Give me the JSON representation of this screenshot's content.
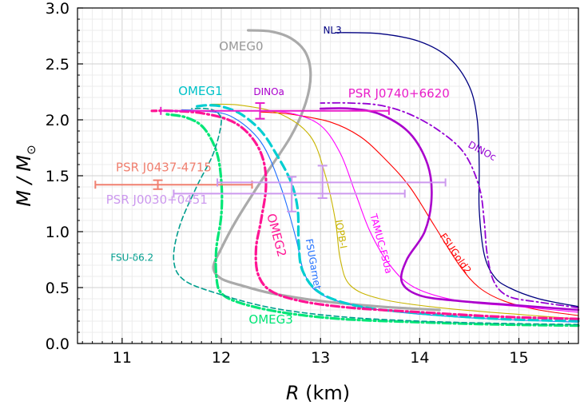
{
  "chart_data": {
    "type": "line",
    "title": "",
    "xlabel": {
      "symbol": "R",
      "unit": " (km)"
    },
    "ylabel": {
      "text": "M / M",
      "sub": "⊙"
    },
    "xlim": [
      10.55,
      15.6
    ],
    "ylim": [
      0.0,
      3.0
    ],
    "xticks": [
      11,
      12,
      13,
      14,
      15
    ],
    "yticks": [
      0.0,
      0.5,
      1.0,
      1.5,
      2.0,
      2.5,
      3.0
    ],
    "grid": true,
    "series": [
      {
        "name": "NL3",
        "color": "#000080",
        "dash": "",
        "width": 1.3,
        "points": [
          [
            15.6,
            0.33
          ],
          [
            15.2,
            0.4
          ],
          [
            14.9,
            0.5
          ],
          [
            14.75,
            0.6
          ],
          [
            14.65,
            0.8
          ],
          [
            14.6,
            1.2
          ],
          [
            14.6,
            1.6
          ],
          [
            14.58,
            2.0
          ],
          [
            14.5,
            2.3
          ],
          [
            14.3,
            2.55
          ],
          [
            14.0,
            2.7
          ],
          [
            13.6,
            2.77
          ],
          [
            13.15,
            2.78
          ]
        ]
      },
      {
        "name": "OMEG0",
        "color": "#aaaaaa",
        "dash": "",
        "width": 3.2,
        "points": [
          [
            14.2,
            0.3
          ],
          [
            13.6,
            0.33
          ],
          [
            13.0,
            0.38
          ],
          [
            12.5,
            0.45
          ],
          [
            12.2,
            0.52
          ],
          [
            12.0,
            0.58
          ],
          [
            11.92,
            0.68
          ],
          [
            12.0,
            0.85
          ],
          [
            12.15,
            1.1
          ],
          [
            12.4,
            1.45
          ],
          [
            12.7,
            1.85
          ],
          [
            12.85,
            2.15
          ],
          [
            12.9,
            2.4
          ],
          [
            12.85,
            2.6
          ],
          [
            12.7,
            2.73
          ],
          [
            12.5,
            2.79
          ],
          [
            12.27,
            2.8
          ]
        ]
      },
      {
        "name": "FSUGold2",
        "color": "#ff0000",
        "dash": "",
        "width": 1.1,
        "points": [
          [
            15.6,
            0.25
          ],
          [
            15.2,
            0.3
          ],
          [
            14.85,
            0.38
          ],
          [
            14.6,
            0.5
          ],
          [
            14.4,
            0.7
          ],
          [
            14.15,
            1.05
          ],
          [
            13.9,
            1.4
          ],
          [
            13.65,
            1.65
          ],
          [
            13.4,
            1.85
          ],
          [
            13.1,
            1.98
          ],
          [
            12.7,
            2.05
          ],
          [
            12.4,
            2.07
          ]
        ]
      },
      {
        "name": "TAMUC-FSUa",
        "color": "#ff00ff",
        "dash": "",
        "width": 1.1,
        "points": [
          [
            15.6,
            0.28
          ],
          [
            15.0,
            0.33
          ],
          [
            14.4,
            0.38
          ],
          [
            13.95,
            0.5
          ],
          [
            13.7,
            0.7
          ],
          [
            13.5,
            1.0
          ],
          [
            13.35,
            1.35
          ],
          [
            13.2,
            1.7
          ],
          [
            13.0,
            1.95
          ],
          [
            12.7,
            2.06
          ],
          [
            12.4,
            2.08
          ]
        ]
      },
      {
        "name": "IOPB-I",
        "color": "#c8b400",
        "dash": "",
        "width": 1.1,
        "points": [
          [
            15.6,
            0.22
          ],
          [
            15.0,
            0.26
          ],
          [
            14.2,
            0.32
          ],
          [
            13.6,
            0.4
          ],
          [
            13.3,
            0.52
          ],
          [
            13.2,
            0.75
          ],
          [
            13.15,
            1.1
          ],
          [
            13.05,
            1.5
          ],
          [
            12.9,
            1.85
          ],
          [
            12.6,
            2.05
          ],
          [
            12.2,
            2.13
          ],
          [
            11.9,
            2.14
          ]
        ]
      },
      {
        "name": "FSUGarnet",
        "color": "#1f6fff",
        "dash": "",
        "width": 1.1,
        "points": [
          [
            15.6,
            0.19
          ],
          [
            14.5,
            0.23
          ],
          [
            13.6,
            0.3
          ],
          [
            13.05,
            0.42
          ],
          [
            12.85,
            0.6
          ],
          [
            12.75,
            0.95
          ],
          [
            12.6,
            1.4
          ],
          [
            12.4,
            1.8
          ],
          [
            12.1,
            2.03
          ],
          [
            11.8,
            2.08
          ],
          [
            11.6,
            2.09
          ]
        ]
      },
      {
        "name": "DINOc",
        "color": "#9400d3",
        "dash": "9,4,2,4",
        "width": 1.8,
        "points": [
          [
            15.6,
            0.32
          ],
          [
            15.2,
            0.37
          ],
          [
            14.9,
            0.42
          ],
          [
            14.75,
            0.55
          ],
          [
            14.68,
            0.8
          ],
          [
            14.65,
            1.1
          ],
          [
            14.6,
            1.4
          ],
          [
            14.45,
            1.7
          ],
          [
            14.2,
            1.9
          ],
          [
            13.9,
            2.05
          ],
          [
            13.6,
            2.13
          ],
          [
            13.3,
            2.15
          ],
          [
            13.0,
            2.15
          ]
        ]
      },
      {
        "name": "DINOa",
        "color": "#aa00cc",
        "dash": "",
        "width": 2.6,
        "points": [
          [
            15.6,
            0.3
          ],
          [
            15.0,
            0.34
          ],
          [
            14.4,
            0.38
          ],
          [
            14.0,
            0.43
          ],
          [
            13.82,
            0.55
          ],
          [
            13.87,
            0.75
          ],
          [
            14.05,
            1.0
          ],
          [
            14.12,
            1.3
          ],
          [
            14.08,
            1.6
          ],
          [
            13.9,
            1.88
          ],
          [
            13.6,
            2.05
          ],
          [
            13.3,
            2.1
          ],
          [
            13.0,
            2.1
          ]
        ]
      },
      {
        "name": "OMEG1",
        "color": "#00ced1",
        "dash": "11,6",
        "width": 3.2,
        "points": [
          [
            15.6,
            0.2
          ],
          [
            14.8,
            0.22
          ],
          [
            14.0,
            0.27
          ],
          [
            13.4,
            0.33
          ],
          [
            13.0,
            0.45
          ],
          [
            12.82,
            0.65
          ],
          [
            12.78,
            0.9
          ],
          [
            12.77,
            1.2
          ],
          [
            12.7,
            1.45
          ],
          [
            12.55,
            1.7
          ],
          [
            12.4,
            1.9
          ],
          [
            12.2,
            2.05
          ],
          [
            12.0,
            2.12
          ],
          [
            11.85,
            2.13
          ],
          [
            11.75,
            2.12
          ]
        ]
      },
      {
        "name": "OMEG2",
        "color": "#ff1493",
        "dash": "10,4,2,4",
        "width": 3.2,
        "points": [
          [
            15.6,
            0.22
          ],
          [
            14.8,
            0.24
          ],
          [
            14.0,
            0.28
          ],
          [
            13.3,
            0.32
          ],
          [
            12.8,
            0.38
          ],
          [
            12.5,
            0.47
          ],
          [
            12.37,
            0.62
          ],
          [
            12.35,
            0.85
          ],
          [
            12.4,
            1.1
          ],
          [
            12.45,
            1.4
          ],
          [
            12.42,
            1.65
          ],
          [
            12.3,
            1.85
          ],
          [
            12.1,
            1.99
          ],
          [
            11.8,
            2.06
          ],
          [
            11.5,
            2.08
          ],
          [
            11.3,
            2.08
          ]
        ]
      },
      {
        "name": "OMEG3",
        "color": "#00e676",
        "dash": "10,4,2,4",
        "width": 3.2,
        "points": [
          [
            15.6,
            0.16
          ],
          [
            14.8,
            0.17
          ],
          [
            14.0,
            0.19
          ],
          [
            13.2,
            0.22
          ],
          [
            12.6,
            0.28
          ],
          [
            12.2,
            0.36
          ],
          [
            12.0,
            0.45
          ],
          [
            11.95,
            0.6
          ],
          [
            11.95,
            0.85
          ],
          [
            12.0,
            1.15
          ],
          [
            12.0,
            1.45
          ],
          [
            11.95,
            1.72
          ],
          [
            11.82,
            1.93
          ],
          [
            11.65,
            2.02
          ],
          [
            11.45,
            2.05
          ]
        ]
      },
      {
        "name": "FSU-δ6.2",
        "color": "#009e8e",
        "dash": "6,4",
        "width": 1.6,
        "points": [
          [
            15.6,
            0.17
          ],
          [
            14.8,
            0.18
          ],
          [
            14.0,
            0.2
          ],
          [
            13.2,
            0.24
          ],
          [
            12.5,
            0.32
          ],
          [
            11.95,
            0.45
          ],
          [
            11.62,
            0.57
          ],
          [
            11.52,
            0.75
          ],
          [
            11.58,
            1.05
          ],
          [
            11.75,
            1.4
          ],
          [
            11.92,
            1.7
          ],
          [
            12.0,
            1.98
          ],
          [
            11.95,
            2.07
          ],
          [
            11.85,
            2.1
          ],
          [
            11.7,
            2.1
          ]
        ]
      }
    ],
    "error_bars": [
      {
        "name": "PSR J0740+6620",
        "color": "#e91ec9",
        "x": 12.39,
        "y": 2.08,
        "xerr": [
          1.0,
          1.3
        ],
        "yerr": [
          0.07,
          0.07
        ]
      },
      {
        "name": "PSR J0437-4715",
        "color": "#f08070",
        "x": 11.36,
        "y": 1.42,
        "xerr": [
          0.63,
          0.95
        ],
        "yerr": [
          0.04,
          0.04
        ]
      },
      {
        "name": "PSR J0030+0451",
        "color": "#cc99ee",
        "x": 12.71,
        "y": 1.34,
        "xerr": [
          1.19,
          1.14
        ],
        "yerr": [
          0.16,
          0.15
        ]
      },
      {
        "name": "PSR J0030+0451",
        "color": "#cc99ee",
        "x": 13.02,
        "y": 1.44,
        "xerr": [
          1.06,
          1.24
        ],
        "yerr": [
          0.14,
          0.15
        ]
      }
    ],
    "annotations": [
      {
        "text": "NL3",
        "color": "#000080",
        "x": 13.12,
        "y": 2.77,
        "size": 12,
        "rotate": 0,
        "anchor": "middle"
      },
      {
        "text": "OMEG0",
        "color": "#999999",
        "x": 12.2,
        "y": 2.62,
        "size": 15,
        "rotate": 0,
        "anchor": "middle"
      },
      {
        "text": "OMEG1",
        "color": "#00c2c8",
        "x": 11.79,
        "y": 2.22,
        "size": 15,
        "rotate": 0,
        "anchor": "middle"
      },
      {
        "text": "DINOa",
        "color": "#aa00cc",
        "x": 12.48,
        "y": 2.22,
        "size": 12,
        "rotate": 0,
        "anchor": "middle"
      },
      {
        "text": "PSR J0740+6620",
        "color": "#e91ec9",
        "x": 13.79,
        "y": 2.2,
        "size": 15,
        "rotate": 0,
        "anchor": "middle"
      },
      {
        "text": "DINOc",
        "color": "#9400d3",
        "x": 14.48,
        "y": 1.76,
        "size": 12,
        "rotate": 28,
        "anchor": "start"
      },
      {
        "text": "PSR J0437-4715",
        "color": "#f08070",
        "x": 11.42,
        "y": 1.54,
        "size": 15,
        "rotate": 0,
        "anchor": "middle"
      },
      {
        "text": "PSR J0030+0451",
        "color": "#cc99ee",
        "x": 11.35,
        "y": 1.25,
        "size": 15,
        "rotate": 0,
        "anchor": "middle"
      },
      {
        "text": "OMEG2",
        "color": "#ff1493",
        "x": 12.46,
        "y": 1.15,
        "size": 15,
        "rotate": 75,
        "anchor": "start"
      },
      {
        "text": "FSUGarnet",
        "color": "#1f6fff",
        "x": 12.85,
        "y": 0.93,
        "size": 12,
        "rotate": 80,
        "anchor": "start"
      },
      {
        "text": "IOPB-I",
        "color": "#c8b400",
        "x": 13.15,
        "y": 1.1,
        "size": 12,
        "rotate": 80,
        "anchor": "start"
      },
      {
        "text": "TAMUC-FSUa",
        "color": "#ff00ff",
        "x": 13.5,
        "y": 1.15,
        "size": 12,
        "rotate": 75,
        "anchor": "start"
      },
      {
        "text": "FSUGold2",
        "color": "#ff0000",
        "x": 14.2,
        "y": 0.96,
        "size": 12,
        "rotate": 55,
        "anchor": "start"
      },
      {
        "text": "FSU-δ6.2",
        "color": "#009e8e",
        "x": 11.1,
        "y": 0.74,
        "size": 12,
        "rotate": 0,
        "anchor": "middle"
      },
      {
        "text": "OMEG3",
        "color": "#00e676",
        "x": 12.5,
        "y": 0.18,
        "size": 15,
        "rotate": 0,
        "anchor": "middle"
      }
    ]
  }
}
